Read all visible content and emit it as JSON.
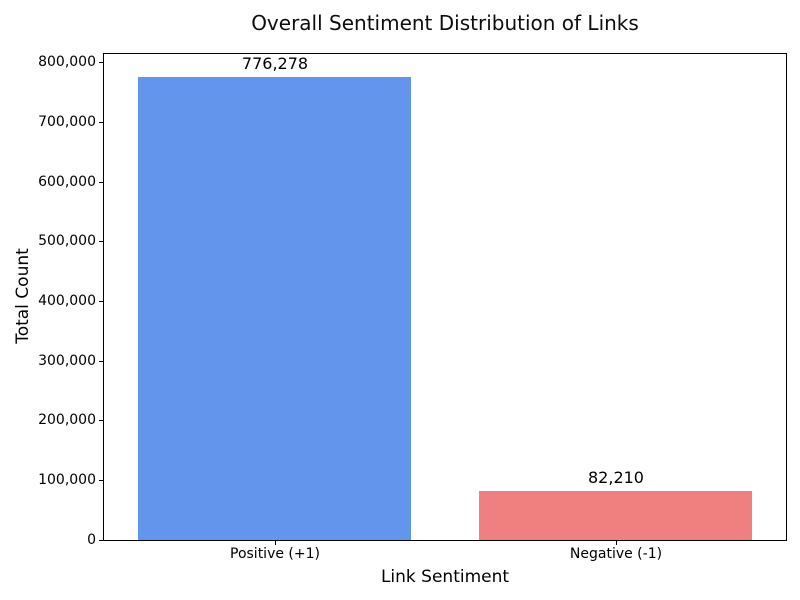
{
  "figure": {
    "background": "#ffffff",
    "text_color": "#000000",
    "spine_color": "#000000"
  },
  "chart_data": {
    "type": "bar",
    "title": "Overall Sentiment Distribution of Links",
    "xlabel": "Link Sentiment",
    "ylabel": "Total Count",
    "categories": [
      "Positive (+1)",
      "Negative (-1)"
    ],
    "values": [
      776278,
      82210
    ],
    "value_labels": [
      "776,278",
      "82,210"
    ],
    "bar_colors": [
      "#6495ED",
      "#F08080"
    ],
    "bar_width_fraction": 0.8,
    "ylim": [
      0,
      815092
    ],
    "yticks": [
      0,
      100000,
      200000,
      300000,
      400000,
      500000,
      600000,
      700000,
      800000
    ],
    "ytick_labels": [
      "0",
      "100,000",
      "200,000",
      "300,000",
      "400,000",
      "500,000",
      "600,000",
      "700,000",
      "800,000"
    ],
    "grid": false,
    "legend": "none"
  }
}
